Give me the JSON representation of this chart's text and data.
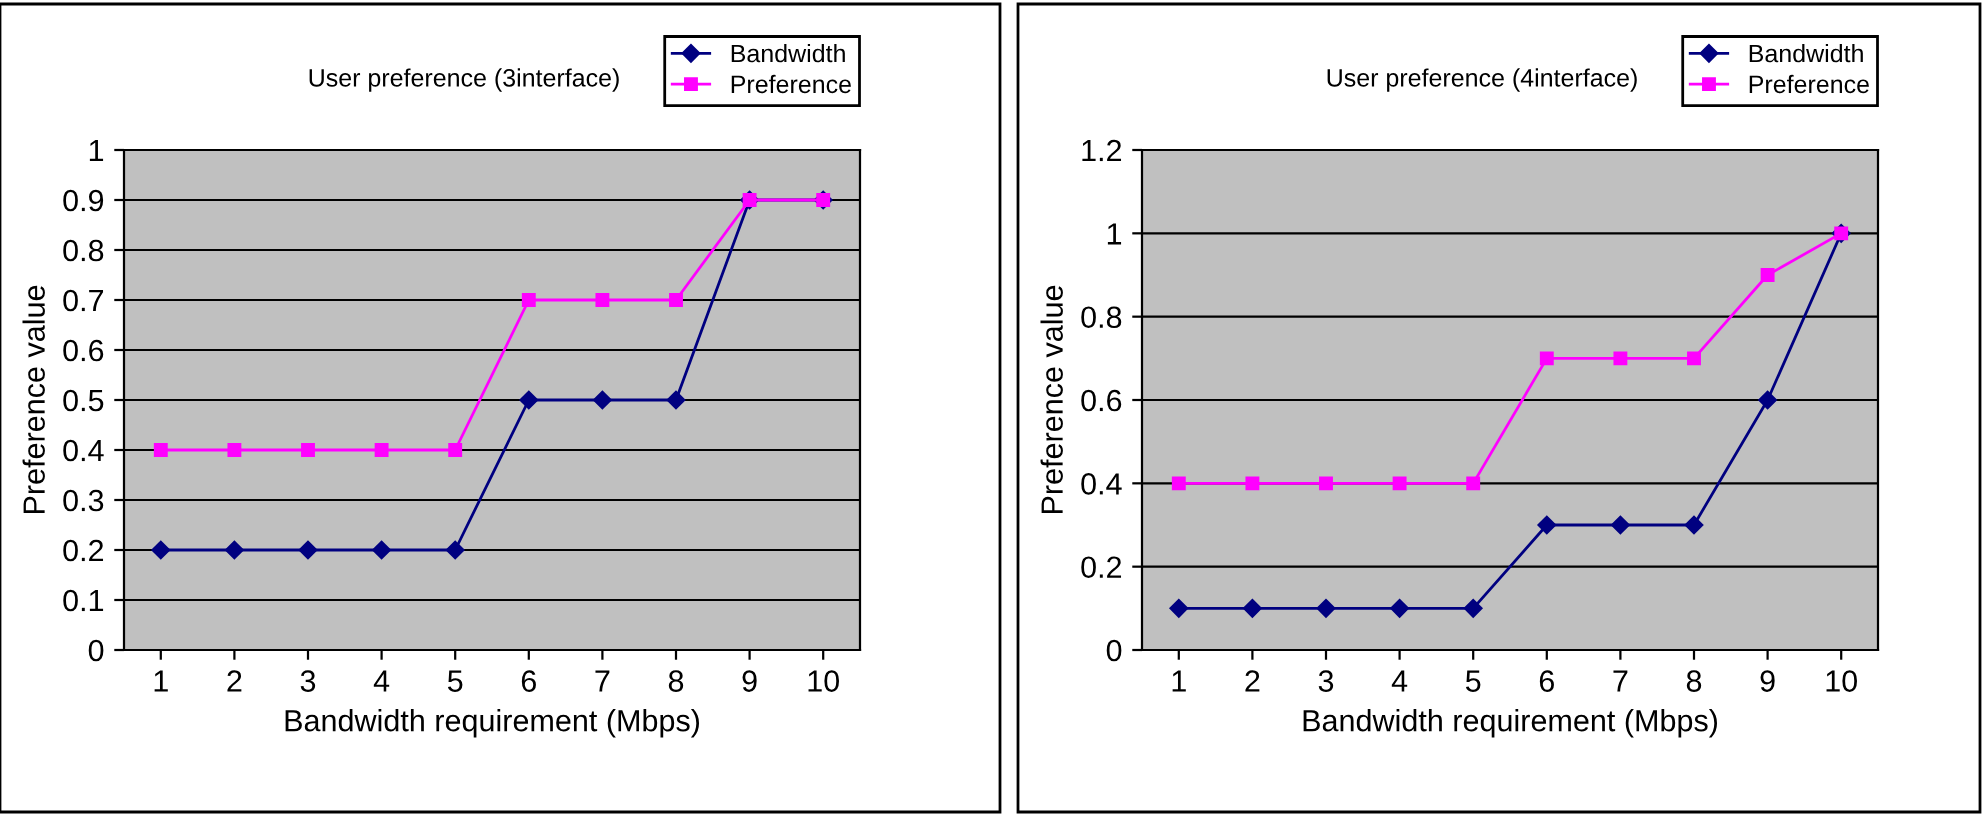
{
  "chart_data": [
    {
      "type": "line",
      "title": "User preference (3interface)",
      "xlabel": "Bandwidth requirement (Mbps)",
      "ylabel": "Preference value",
      "categories": [
        "1",
        "2",
        "3",
        "4",
        "5",
        "6",
        "7",
        "8",
        "9",
        "10"
      ],
      "series": [
        {
          "name": "Bandwidth",
          "color": "#000080",
          "marker": "diamond",
          "values": [
            0.2,
            0.2,
            0.2,
            0.2,
            0.2,
            0.5,
            0.5,
            0.5,
            0.9,
            0.9
          ]
        },
        {
          "name": "Preference",
          "color": "#ff00ff",
          "marker": "square",
          "values": [
            0.4,
            0.4,
            0.4,
            0.4,
            0.4,
            0.7,
            0.7,
            0.7,
            0.9,
            0.9
          ]
        }
      ],
      "ylim": [
        0,
        1
      ],
      "yticks": [
        0,
        0.1,
        0.2,
        0.3,
        0.4,
        0.5,
        0.6,
        0.7,
        0.8,
        0.9,
        1
      ],
      "grid": "y",
      "legend": "top right"
    },
    {
      "type": "line",
      "title": "User preference (4interface)",
      "xlabel": "Bandwidth requirement (Mbps)",
      "ylabel": "Preference value",
      "categories": [
        "1",
        "2",
        "3",
        "4",
        "5",
        "6",
        "7",
        "8",
        "9",
        "10"
      ],
      "series": [
        {
          "name": "Bandwidth",
          "color": "#000080",
          "marker": "diamond",
          "values": [
            0.1,
            0.1,
            0.1,
            0.1,
            0.1,
            0.3,
            0.3,
            0.3,
            0.6,
            1.0
          ]
        },
        {
          "name": "Preference",
          "color": "#ff00ff",
          "marker": "square",
          "values": [
            0.4,
            0.4,
            0.4,
            0.4,
            0.4,
            0.7,
            0.7,
            0.7,
            0.9,
            1.0
          ]
        }
      ],
      "ylim": [
        0,
        1.2
      ],
      "yticks": [
        0,
        0.2,
        0.4,
        0.6,
        0.8,
        1,
        1.2
      ],
      "grid": "y",
      "legend": "top right"
    }
  ]
}
